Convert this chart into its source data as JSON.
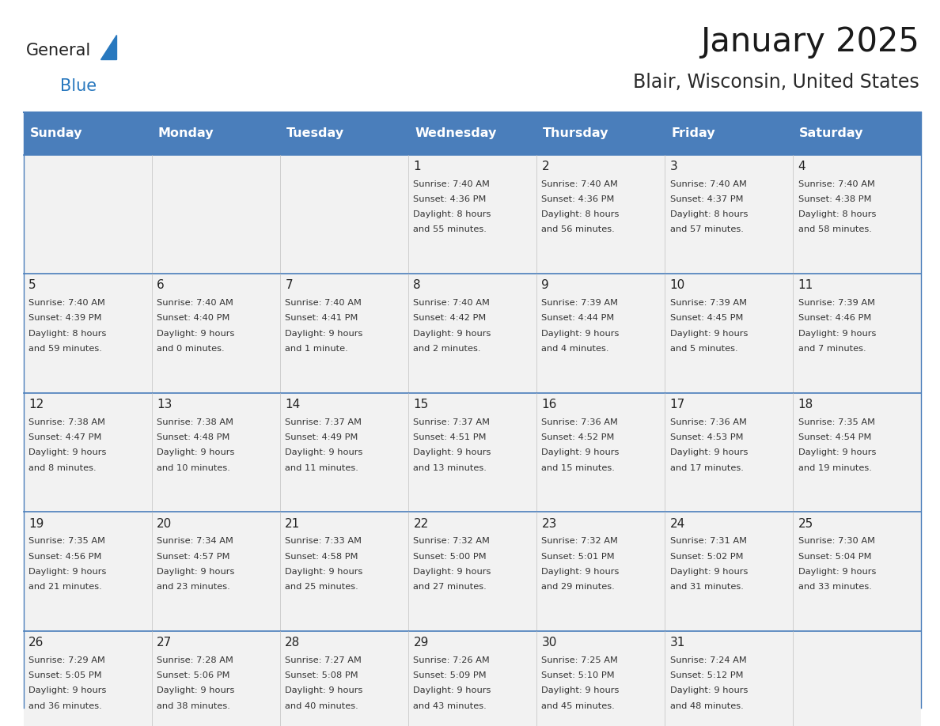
{
  "title": "January 2025",
  "subtitle": "Blair, Wisconsin, United States",
  "days_of_week": [
    "Sunday",
    "Monday",
    "Tuesday",
    "Wednesday",
    "Thursday",
    "Friday",
    "Saturday"
  ],
  "header_bg": "#4A7EBB",
  "header_text_color": "#FFFFFF",
  "cell_bg": "#F2F2F2",
  "text_color": "#333333",
  "day_num_color": "#222222",
  "border_color": "#4A7EBB",
  "cell_border_color": "#C0C0C0",
  "logo_general_color": "#222222",
  "logo_blue_color": "#2878BE",
  "logo_triangle_color": "#2878BE",
  "weeks": [
    [
      {
        "day": "",
        "info": ""
      },
      {
        "day": "",
        "info": ""
      },
      {
        "day": "",
        "info": ""
      },
      {
        "day": "1",
        "info": "Sunrise: 7:40 AM\nSunset: 4:36 PM\nDaylight: 8 hours\nand 55 minutes."
      },
      {
        "day": "2",
        "info": "Sunrise: 7:40 AM\nSunset: 4:36 PM\nDaylight: 8 hours\nand 56 minutes."
      },
      {
        "day": "3",
        "info": "Sunrise: 7:40 AM\nSunset: 4:37 PM\nDaylight: 8 hours\nand 57 minutes."
      },
      {
        "day": "4",
        "info": "Sunrise: 7:40 AM\nSunset: 4:38 PM\nDaylight: 8 hours\nand 58 minutes."
      }
    ],
    [
      {
        "day": "5",
        "info": "Sunrise: 7:40 AM\nSunset: 4:39 PM\nDaylight: 8 hours\nand 59 minutes."
      },
      {
        "day": "6",
        "info": "Sunrise: 7:40 AM\nSunset: 4:40 PM\nDaylight: 9 hours\nand 0 minutes."
      },
      {
        "day": "7",
        "info": "Sunrise: 7:40 AM\nSunset: 4:41 PM\nDaylight: 9 hours\nand 1 minute."
      },
      {
        "day": "8",
        "info": "Sunrise: 7:40 AM\nSunset: 4:42 PM\nDaylight: 9 hours\nand 2 minutes."
      },
      {
        "day": "9",
        "info": "Sunrise: 7:39 AM\nSunset: 4:44 PM\nDaylight: 9 hours\nand 4 minutes."
      },
      {
        "day": "10",
        "info": "Sunrise: 7:39 AM\nSunset: 4:45 PM\nDaylight: 9 hours\nand 5 minutes."
      },
      {
        "day": "11",
        "info": "Sunrise: 7:39 AM\nSunset: 4:46 PM\nDaylight: 9 hours\nand 7 minutes."
      }
    ],
    [
      {
        "day": "12",
        "info": "Sunrise: 7:38 AM\nSunset: 4:47 PM\nDaylight: 9 hours\nand 8 minutes."
      },
      {
        "day": "13",
        "info": "Sunrise: 7:38 AM\nSunset: 4:48 PM\nDaylight: 9 hours\nand 10 minutes."
      },
      {
        "day": "14",
        "info": "Sunrise: 7:37 AM\nSunset: 4:49 PM\nDaylight: 9 hours\nand 11 minutes."
      },
      {
        "day": "15",
        "info": "Sunrise: 7:37 AM\nSunset: 4:51 PM\nDaylight: 9 hours\nand 13 minutes."
      },
      {
        "day": "16",
        "info": "Sunrise: 7:36 AM\nSunset: 4:52 PM\nDaylight: 9 hours\nand 15 minutes."
      },
      {
        "day": "17",
        "info": "Sunrise: 7:36 AM\nSunset: 4:53 PM\nDaylight: 9 hours\nand 17 minutes."
      },
      {
        "day": "18",
        "info": "Sunrise: 7:35 AM\nSunset: 4:54 PM\nDaylight: 9 hours\nand 19 minutes."
      }
    ],
    [
      {
        "day": "19",
        "info": "Sunrise: 7:35 AM\nSunset: 4:56 PM\nDaylight: 9 hours\nand 21 minutes."
      },
      {
        "day": "20",
        "info": "Sunrise: 7:34 AM\nSunset: 4:57 PM\nDaylight: 9 hours\nand 23 minutes."
      },
      {
        "day": "21",
        "info": "Sunrise: 7:33 AM\nSunset: 4:58 PM\nDaylight: 9 hours\nand 25 minutes."
      },
      {
        "day": "22",
        "info": "Sunrise: 7:32 AM\nSunset: 5:00 PM\nDaylight: 9 hours\nand 27 minutes."
      },
      {
        "day": "23",
        "info": "Sunrise: 7:32 AM\nSunset: 5:01 PM\nDaylight: 9 hours\nand 29 minutes."
      },
      {
        "day": "24",
        "info": "Sunrise: 7:31 AM\nSunset: 5:02 PM\nDaylight: 9 hours\nand 31 minutes."
      },
      {
        "day": "25",
        "info": "Sunrise: 7:30 AM\nSunset: 5:04 PM\nDaylight: 9 hours\nand 33 minutes."
      }
    ],
    [
      {
        "day": "26",
        "info": "Sunrise: 7:29 AM\nSunset: 5:05 PM\nDaylight: 9 hours\nand 36 minutes."
      },
      {
        "day": "27",
        "info": "Sunrise: 7:28 AM\nSunset: 5:06 PM\nDaylight: 9 hours\nand 38 minutes."
      },
      {
        "day": "28",
        "info": "Sunrise: 7:27 AM\nSunset: 5:08 PM\nDaylight: 9 hours\nand 40 minutes."
      },
      {
        "day": "29",
        "info": "Sunrise: 7:26 AM\nSunset: 5:09 PM\nDaylight: 9 hours\nand 43 minutes."
      },
      {
        "day": "30",
        "info": "Sunrise: 7:25 AM\nSunset: 5:10 PM\nDaylight: 9 hours\nand 45 minutes."
      },
      {
        "day": "31",
        "info": "Sunrise: 7:24 AM\nSunset: 5:12 PM\nDaylight: 9 hours\nand 48 minutes."
      },
      {
        "day": "",
        "info": ""
      }
    ]
  ]
}
